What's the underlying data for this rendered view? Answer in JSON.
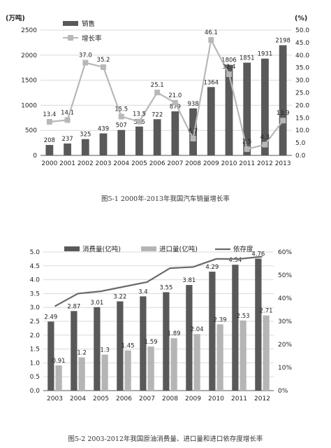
{
  "colors": {
    "dark_bar": "#595959",
    "light_bar": "#b5b5b5",
    "growth_line": "#b8b8b8",
    "dependency_line": "#6a6a6a",
    "grid": "#d9d9d9",
    "axis": "#555555"
  },
  "chart_data": [
    {
      "type": "bar+line",
      "title": "",
      "left_axis_unit": "(万吨)",
      "right_axis_unit": "(%)",
      "categories": [
        "2000",
        "2001",
        "2002",
        "2003",
        "2004",
        "2005",
        "2006",
        "2007",
        "2008",
        "2009",
        "2010",
        "2011",
        "2012",
        "2013"
      ],
      "series": [
        {
          "name": "销售",
          "type": "bar",
          "axis": "left",
          "values": [
            208,
            237,
            325,
            439,
            507,
            576,
            722,
            879,
            938,
            1364,
            1806,
            1851,
            1931,
            2198
          ],
          "labels": [
            "208",
            "237",
            "325",
            "439",
            "507",
            "576",
            "722",
            "879",
            "938",
            "1364",
            "1806",
            "1851",
            "1931",
            "2198"
          ]
        },
        {
          "name": "增长率",
          "type": "line",
          "axis": "right",
          "values": [
            13.4,
            14.1,
            37.0,
            35.2,
            15.5,
            13.5,
            25.1,
            21.0,
            6.7,
            46.1,
            32.4,
            2.5,
            4.3,
            13.9
          ],
          "labels": [
            "13.4",
            "14.1",
            "37.0",
            "35.2",
            "15.5",
            "13.5",
            "25.1",
            "21.0",
            "6.7",
            "46.1",
            "32.4",
            "2.5",
            "4.3",
            "13.9"
          ]
        }
      ],
      "ylim_left": [
        0,
        2500
      ],
      "ylim_right": [
        0,
        50
      ],
      "y_ticks_left": [
        "0",
        "500",
        "1000",
        "1500",
        "2000",
        "2500"
      ],
      "y_ticks_right": [
        "0.0",
        "5.0",
        "10.0",
        "15.0",
        "20.0",
        "25.0",
        "30.0",
        "35.0",
        "40.0",
        "45.0",
        "50.0"
      ],
      "grid": true,
      "legend_position": "top-left",
      "caption": "图5-1  2000年-2013年我国汽车销量增长率"
    },
    {
      "type": "bar+line",
      "title": "",
      "categories": [
        "2003",
        "2004",
        "2005",
        "2006",
        "2007",
        "2008",
        "2009",
        "2010",
        "2011",
        "2012"
      ],
      "series": [
        {
          "name": "消费量(亿吨)",
          "type": "bar",
          "axis": "left",
          "values": [
            2.49,
            2.87,
            3.01,
            3.22,
            3.4,
            3.55,
            3.81,
            4.29,
            4.54,
            4.76
          ],
          "labels": [
            "2.49",
            "2.87",
            "3.01",
            "3.22",
            "3.4",
            "3.55",
            "3.81",
            "4.29",
            "4.54",
            "4.76"
          ]
        },
        {
          "name": "进口量(亿吨)",
          "type": "bar",
          "axis": "left",
          "values": [
            0.91,
            1.2,
            1.3,
            1.45,
            1.59,
            1.89,
            2.04,
            2.39,
            2.53,
            2.71
          ],
          "labels": [
            "0.91",
            "1.2",
            "1.3",
            "1.45",
            "1.59",
            "1.89",
            "2.04",
            "2.39",
            "2.53",
            "2.71"
          ]
        },
        {
          "name": "依存度",
          "type": "line",
          "axis": "right",
          "values": [
            36.5,
            42,
            43,
            45,
            47,
            53,
            53.5,
            57,
            57,
            58
          ]
        }
      ],
      "ylim_left": [
        0,
        5
      ],
      "ylim_right": [
        0,
        60
      ],
      "y_ticks_left": [
        "0.0",
        "0.5",
        "1.0",
        "1.5",
        "2.0",
        "2.5",
        "3.0",
        "3.5",
        "4.0",
        "4.5",
        "5.0"
      ],
      "y_ticks_right": [
        "0%",
        "10%",
        "20%",
        "30%",
        "40%",
        "50%",
        "60%"
      ],
      "grid": true,
      "legend_position": "top",
      "caption": "图5-2  2003-2012年我国原油消费量、进口量和进口依存度增长率"
    }
  ]
}
